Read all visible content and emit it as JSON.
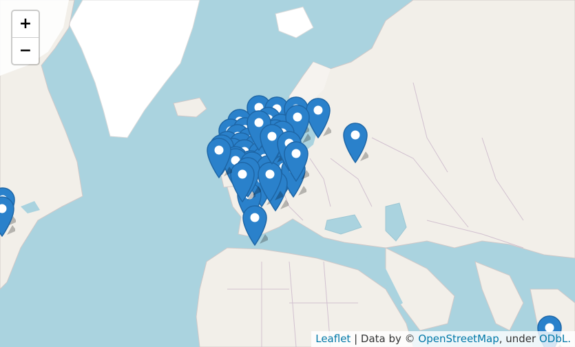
{
  "map": {
    "zoom_in_label": "+",
    "zoom_out_label": "−",
    "attribution": {
      "leaflet": "Leaflet",
      "sep1": " | Data by © ",
      "osm": "OpenStreetMap",
      "sep2": ", under ",
      "odbl": "ODbL."
    },
    "colors": {
      "water": "#aad3df",
      "land": "#f2efe9",
      "ice": "#ffffff",
      "border": "#c8b8c8",
      "marker": "#2a81cb",
      "marker_dark": "#1e66a6"
    },
    "icons": {
      "marker": "map-pin-icon"
    },
    "marker_count": 52
  }
}
